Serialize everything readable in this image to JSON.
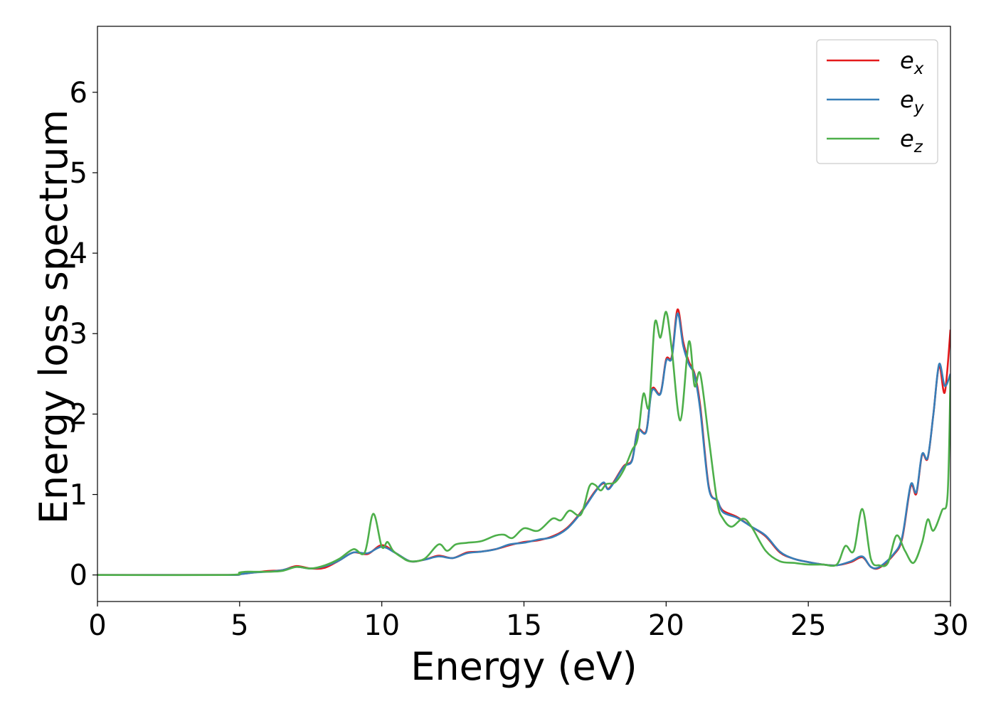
{
  "chart_data": {
    "type": "line",
    "xlabel": "Energy (eV)",
    "ylabel": "Energy loss spectrum",
    "xlim": [
      0,
      30
    ],
    "ylim": [
      -0.33,
      6.82
    ],
    "xticks": [
      0,
      5,
      10,
      15,
      20,
      25,
      30
    ],
    "yticks": [
      0,
      1,
      2,
      3,
      4,
      5,
      6
    ],
    "grid": false,
    "legend_position": "top-right",
    "series": [
      {
        "name": "e_x",
        "legend_main": "e",
        "legend_sub": "x",
        "color": "#e41a1c",
        "x": [
          0,
          4.5,
          5.0,
          5.5,
          6.0,
          6.5,
          7.0,
          7.5,
          8.0,
          8.5,
          9.0,
          9.5,
          10.0,
          10.5,
          11.0,
          11.5,
          12.0,
          12.5,
          13.0,
          13.5,
          14.0,
          14.5,
          15.0,
          15.5,
          16.0,
          16.5,
          17.0,
          17.5,
          17.8,
          18.0,
          18.5,
          18.8,
          19.0,
          19.3,
          19.5,
          19.8,
          20.0,
          20.2,
          20.4,
          20.6,
          20.8,
          21.0,
          21.2,
          21.5,
          21.8,
          22.0,
          22.5,
          23.0,
          23.5,
          24.0,
          24.5,
          25.0,
          25.5,
          26.0,
          26.5,
          26.9,
          27.2,
          27.5,
          28.0,
          28.3,
          28.6,
          28.8,
          29.0,
          29.2,
          29.4,
          29.6,
          29.8,
          30.0
        ],
        "y": [
          0,
          0.0,
          0.01,
          0.03,
          0.05,
          0.06,
          0.11,
          0.08,
          0.09,
          0.18,
          0.28,
          0.26,
          0.37,
          0.27,
          0.17,
          0.19,
          0.24,
          0.21,
          0.28,
          0.29,
          0.32,
          0.37,
          0.41,
          0.43,
          0.48,
          0.58,
          0.78,
          1.04,
          1.14,
          1.08,
          1.35,
          1.43,
          1.8,
          1.79,
          2.31,
          2.26,
          2.68,
          2.72,
          3.3,
          2.9,
          2.65,
          2.5,
          2.1,
          1.1,
          0.92,
          0.8,
          0.72,
          0.6,
          0.48,
          0.28,
          0.2,
          0.16,
          0.13,
          0.12,
          0.16,
          0.22,
          0.1,
          0.09,
          0.25,
          0.45,
          1.1,
          1.01,
          1.49,
          1.45,
          2.0,
          2.6,
          2.27,
          3.05
        ]
      },
      {
        "name": "e_y",
        "legend_main": "e",
        "legend_sub": "y",
        "color": "#377eb8",
        "x": [
          0,
          4.5,
          5.0,
          5.5,
          6.0,
          6.5,
          7.0,
          7.5,
          8.0,
          8.5,
          9.0,
          9.5,
          10.0,
          10.5,
          11.0,
          11.5,
          12.0,
          12.5,
          13.0,
          13.5,
          14.0,
          14.5,
          15.0,
          15.5,
          16.0,
          16.5,
          17.0,
          17.5,
          17.8,
          18.0,
          18.5,
          18.8,
          19.0,
          19.3,
          19.5,
          19.8,
          20.0,
          20.2,
          20.4,
          20.6,
          20.8,
          21.0,
          21.2,
          21.5,
          21.8,
          22.0,
          22.5,
          23.0,
          23.5,
          24.0,
          24.5,
          25.0,
          25.5,
          26.0,
          26.5,
          26.9,
          27.2,
          27.5,
          28.0,
          28.3,
          28.6,
          28.8,
          29.0,
          29.2,
          29.4,
          29.6,
          29.8,
          30.0
        ],
        "y": [
          0,
          0.0,
          0.01,
          0.03,
          0.04,
          0.06,
          0.1,
          0.08,
          0.11,
          0.18,
          0.28,
          0.27,
          0.35,
          0.27,
          0.17,
          0.19,
          0.23,
          0.21,
          0.27,
          0.29,
          0.32,
          0.38,
          0.4,
          0.44,
          0.47,
          0.57,
          0.77,
          1.03,
          1.15,
          1.07,
          1.34,
          1.42,
          1.79,
          1.78,
          2.29,
          2.25,
          2.66,
          2.7,
          3.25,
          2.85,
          2.62,
          2.48,
          2.05,
          1.08,
          0.93,
          0.78,
          0.71,
          0.6,
          0.49,
          0.29,
          0.2,
          0.16,
          0.13,
          0.12,
          0.17,
          0.23,
          0.1,
          0.1,
          0.26,
          0.47,
          1.12,
          1.03,
          1.5,
          1.46,
          2.0,
          2.62,
          2.35,
          2.5
        ]
      },
      {
        "name": "e_z",
        "legend_main": "e",
        "legend_sub": "z",
        "color": "#4daf4a",
        "x": [
          0,
          4.5,
          5.0,
          5.2,
          5.5,
          6.0,
          6.5,
          7.0,
          7.5,
          8.0,
          8.5,
          9.0,
          9.4,
          9.7,
          10.0,
          10.2,
          10.4,
          10.7,
          11.0,
          11.5,
          12.0,
          12.3,
          12.6,
          13.0,
          13.5,
          14.0,
          14.3,
          14.6,
          15.0,
          15.5,
          16.0,
          16.3,
          16.6,
          17.0,
          17.3,
          17.5,
          17.7,
          17.9,
          18.2,
          18.5,
          18.8,
          19.0,
          19.2,
          19.4,
          19.6,
          19.8,
          20.0,
          20.2,
          20.5,
          20.8,
          21.0,
          21.2,
          21.5,
          21.8,
          22.0,
          22.3,
          22.7,
          23.0,
          23.5,
          24.0,
          24.5,
          25.0,
          25.5,
          26.0,
          26.3,
          26.6,
          26.9,
          27.2,
          27.5,
          27.8,
          28.1,
          28.4,
          28.7,
          29.0,
          29.2,
          29.4,
          29.7,
          29.9,
          30.0
        ],
        "y": [
          0,
          0.0,
          0.03,
          0.04,
          0.04,
          0.04,
          0.05,
          0.1,
          0.08,
          0.12,
          0.2,
          0.32,
          0.28,
          0.76,
          0.35,
          0.41,
          0.3,
          0.22,
          0.17,
          0.2,
          0.38,
          0.3,
          0.38,
          0.4,
          0.42,
          0.49,
          0.5,
          0.46,
          0.58,
          0.55,
          0.7,
          0.68,
          0.8,
          0.75,
          1.1,
          1.12,
          1.05,
          1.13,
          1.15,
          1.3,
          1.55,
          1.7,
          2.25,
          2.1,
          3.13,
          2.95,
          3.27,
          2.8,
          1.92,
          2.9,
          2.35,
          2.5,
          1.7,
          0.9,
          0.7,
          0.6,
          0.7,
          0.6,
          0.3,
          0.17,
          0.15,
          0.13,
          0.13,
          0.13,
          0.36,
          0.3,
          0.82,
          0.2,
          0.12,
          0.15,
          0.49,
          0.3,
          0.15,
          0.4,
          0.69,
          0.55,
          0.8,
          1.0,
          2.46
        ]
      }
    ]
  }
}
